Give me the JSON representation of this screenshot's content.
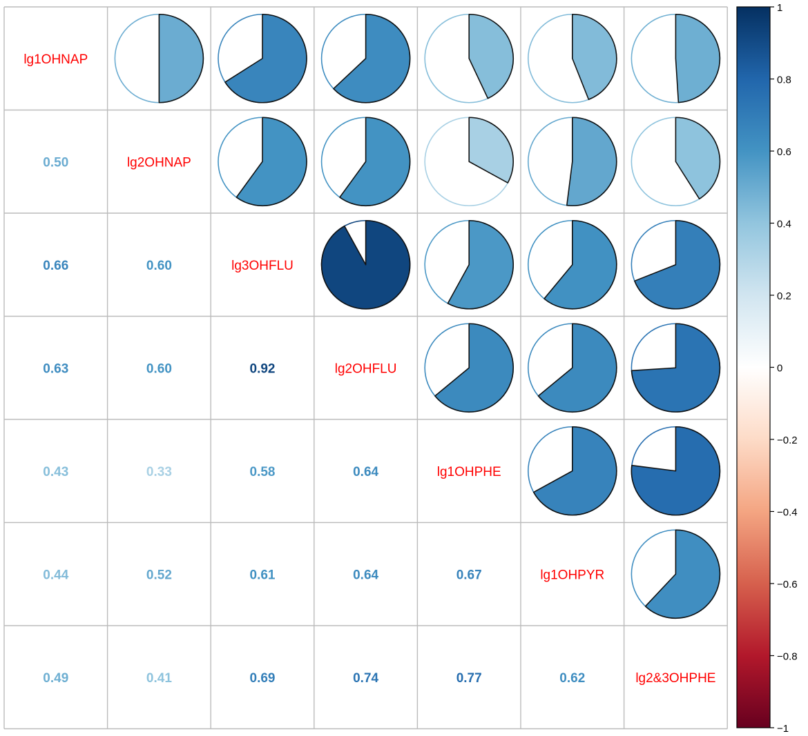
{
  "chart_data": {
    "type": "heatmap",
    "variables": [
      "lg1OHNAP",
      "lg2OHNAP",
      "lg3OHFLU",
      "lg2OHFLU",
      "lg1OHPHE",
      "lg1OHPYR",
      "lg2&3OHPHE"
    ],
    "correlations": [
      [
        "",
        "0.50",
        "0.66",
        "0.63",
        "0.43",
        "0.44",
        "0.49"
      ],
      [
        "0.50",
        "",
        "0.60",
        "0.60",
        "0.33",
        "0.52",
        "0.41"
      ],
      [
        "0.66",
        "0.60",
        "",
        "0.92",
        "0.58",
        "0.61",
        "0.69"
      ],
      [
        "0.63",
        "0.60",
        "0.92",
        "",
        "0.64",
        "0.64",
        "0.74"
      ],
      [
        "0.43",
        "0.33",
        "0.58",
        "0.64",
        "",
        "0.67",
        "0.77"
      ],
      [
        "0.44",
        "0.52",
        "0.61",
        "0.64",
        "0.67",
        "",
        "0.62"
      ],
      [
        "0.49",
        "0.41",
        "0.69",
        "0.74",
        "0.77",
        "0.62",
        ""
      ]
    ],
    "lower_triangle": "number",
    "upper_triangle": "pie",
    "diagonal": "label",
    "label_color": "#ff0000",
    "color_scale": {
      "min": -1,
      "max": 1,
      "ticks": [
        "1",
        "0.8",
        "0.6",
        "0.4",
        "0.2",
        "0",
        "−0.2",
        "−0.4",
        "−0.6",
        "−0.8",
        "−1"
      ],
      "colors": [
        "#67001F",
        "#B2182B",
        "#D6604D",
        "#F4A582",
        "#FDDBC7",
        "#FFFFFF",
        "#D1E5F0",
        "#92C5DE",
        "#4393C3",
        "#2166AC",
        "#053061"
      ]
    },
    "legend_position": "right",
    "grid": true
  }
}
